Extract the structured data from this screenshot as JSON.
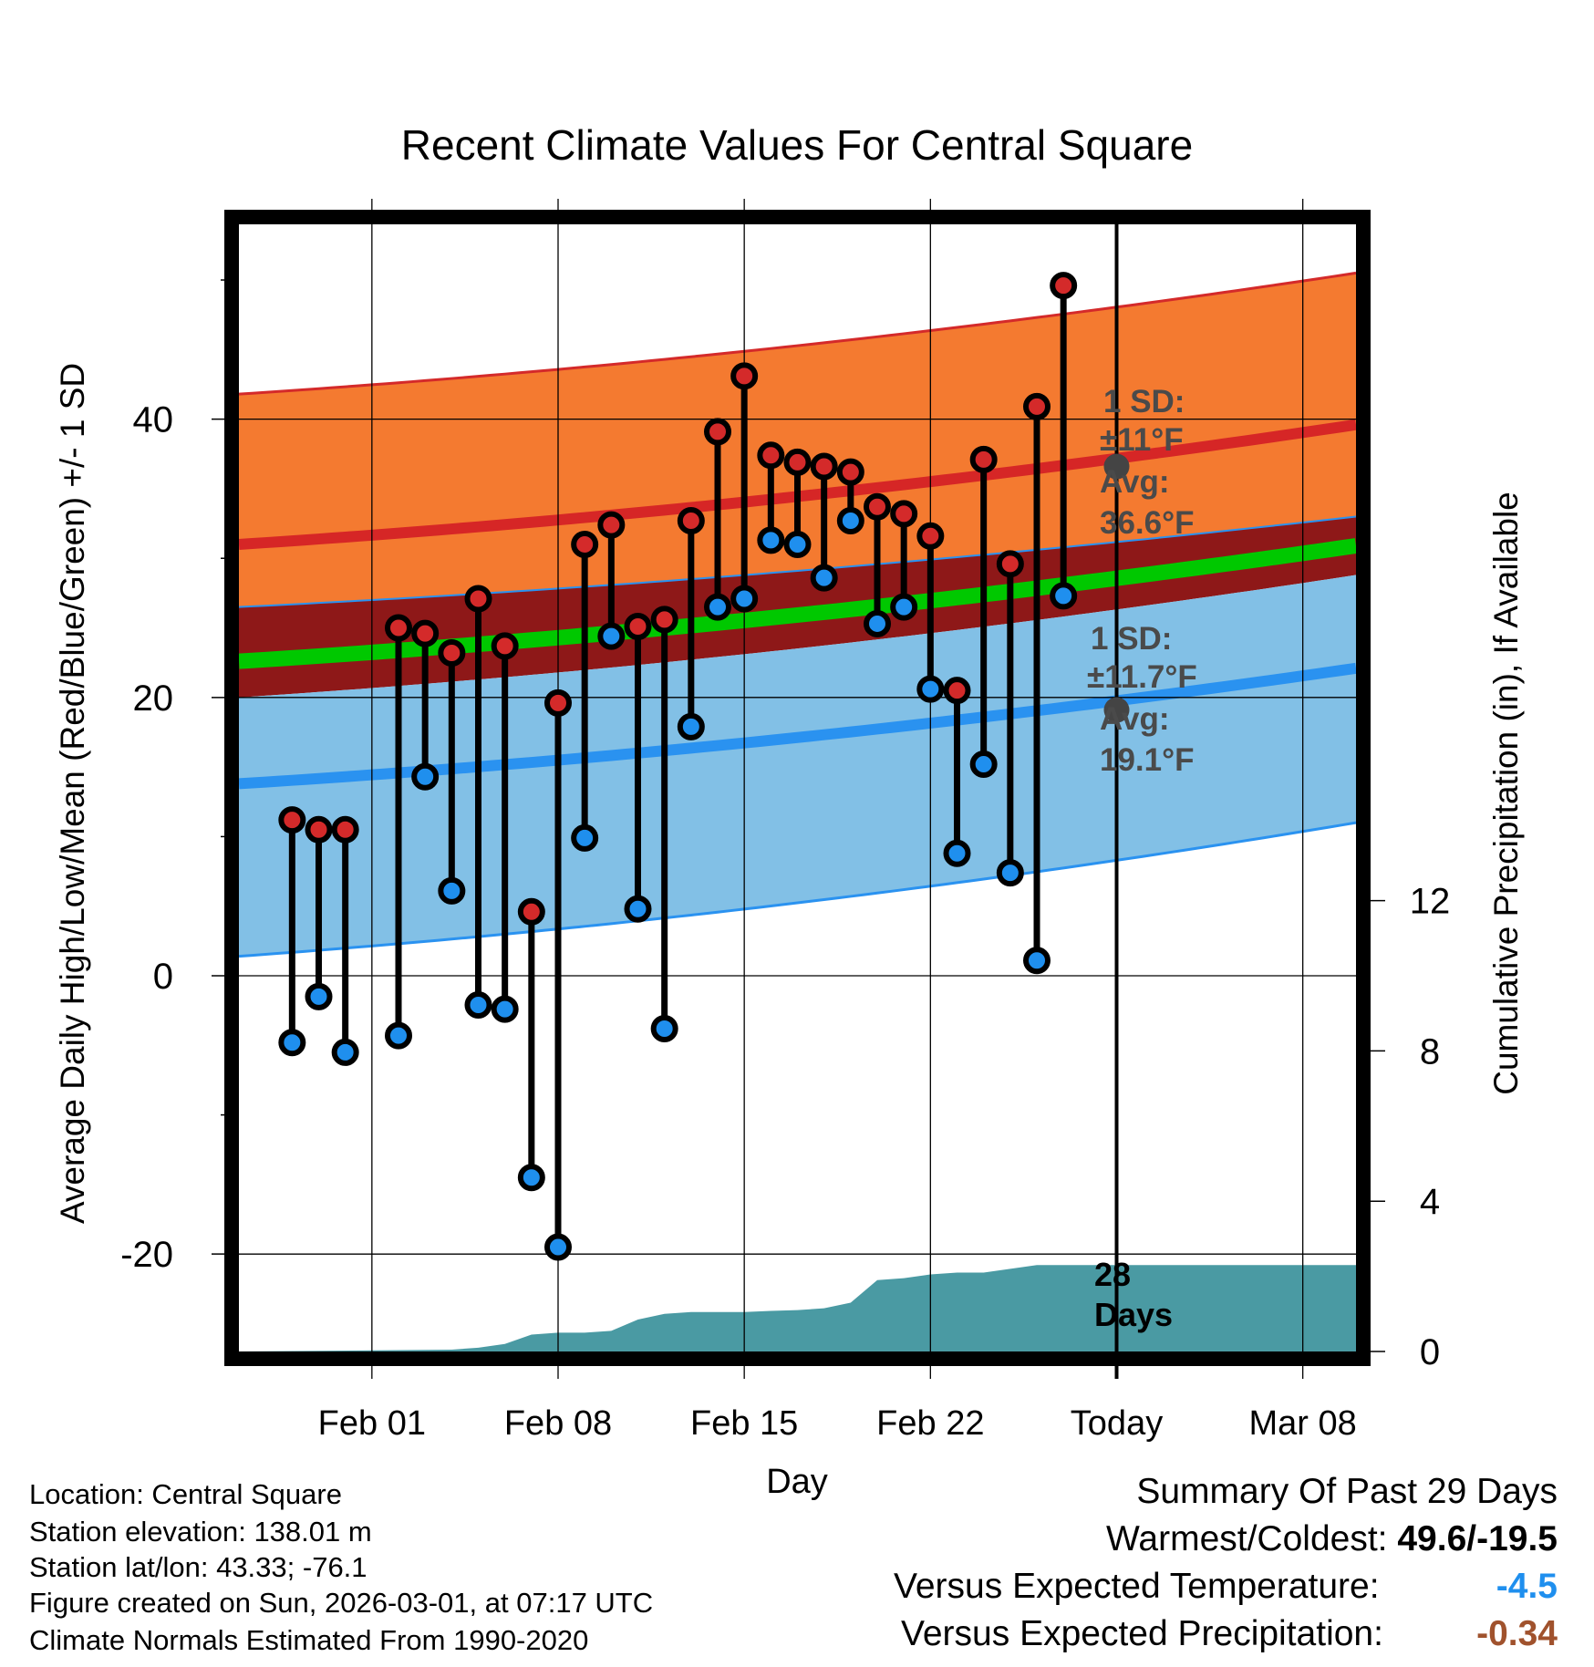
{
  "chart_data": {
    "type": "range-dot",
    "title": "Recent Climate Values For Central Square",
    "xlabel": "Day",
    "ylabel": "Average Daily High/Low/Mean (Red/Blue/Green) +/- 1 SD",
    "ylabel_right": "Cumulative Precipitation (in), If Available",
    "x_range": [
      -2,
      40
    ],
    "ylim": [
      -27,
      54
    ],
    "y2lim": [
      0,
      30
    ],
    "x_ticks": [
      {
        "day": 3,
        "label": "Feb 01"
      },
      {
        "day": 10,
        "label": "Feb 08"
      },
      {
        "day": 17,
        "label": "Feb 15"
      },
      {
        "day": 24,
        "label": "Feb 22"
      },
      {
        "day": 31,
        "label": "Today"
      },
      {
        "day": 38,
        "label": "Mar 08"
      }
    ],
    "y_ticks": [
      40,
      20,
      0,
      -20
    ],
    "y_minor_ticks": [
      50,
      30,
      10,
      -10
    ],
    "y2_ticks": [
      12,
      8,
      4,
      0
    ],
    "today_day": 31,
    "highs": [
      11.2,
      10.5,
      10.5,
      null,
      25.0,
      24.6,
      23.2,
      27.1,
      23.7,
      4.6,
      19.6,
      31.0,
      32.4,
      25.1,
      25.6,
      32.7,
      39.1,
      43.1,
      37.4,
      36.9,
      36.6,
      36.2,
      33.7,
      33.2,
      31.6,
      20.5,
      37.1,
      29.6,
      40.9,
      49.6
    ],
    "lows": [
      -4.8,
      -1.5,
      -5.5,
      null,
      -4.3,
      14.3,
      6.1,
      -2.1,
      -2.4,
      -14.5,
      -19.5,
      9.9,
      24.4,
      4.8,
      -3.8,
      17.9,
      26.5,
      27.1,
      31.3,
      31.0,
      28.6,
      32.7,
      25.3,
      26.5,
      20.6,
      8.8,
      15.2,
      7.4,
      1.1,
      27.3
    ],
    "normal_high": {
      "start": 31.0,
      "end": 39.6
    },
    "normal_low": {
      "start": 13.8,
      "end": 22.1
    },
    "normal_mean": {
      "start": 22.6,
      "end": 30.9
    },
    "high_band": {
      "upper_start": 41.8,
      "upper_end": 50.5,
      "lower_start": 26.5,
      "lower_end": 33.0
    },
    "low_band": {
      "upper_start": 20.0,
      "upper_end": 28.8,
      "lower_start": 1.4,
      "lower_end": 11.0
    },
    "precip_cumulative": [
      [
        -2,
        0
      ],
      [
        6,
        0.05
      ],
      [
        7,
        0.1
      ],
      [
        8,
        0.2
      ],
      [
        9,
        0.45
      ],
      [
        10,
        0.5
      ],
      [
        11,
        0.5
      ],
      [
        12,
        0.55
      ],
      [
        13,
        0.85
      ],
      [
        14,
        1.0
      ],
      [
        15,
        1.05
      ],
      [
        16,
        1.05
      ],
      [
        17,
        1.05
      ],
      [
        18,
        1.08
      ],
      [
        19,
        1.1
      ],
      [
        20,
        1.15
      ],
      [
        21,
        1.3
      ],
      [
        22,
        1.9
      ],
      [
        23,
        1.95
      ],
      [
        24,
        2.05
      ],
      [
        25,
        2.1
      ],
      [
        26,
        2.1
      ],
      [
        27,
        2.2
      ],
      [
        28,
        2.3
      ],
      [
        40,
        2.3
      ]
    ],
    "annotations": {
      "high_sd_label": "1 SD:",
      "high_sd_value": "±11°F",
      "high_avg_label": "Avg:",
      "high_avg_value": "36.6°F",
      "high_avg": 36.6,
      "low_sd_label": "1 SD:",
      "low_sd_value": "±11.7°F",
      "low_avg_label": "Avg:",
      "low_avg_value": "19.1°F",
      "low_avg": 19.1,
      "days_count": "28",
      "days_word": "Days"
    },
    "colors": {
      "high_band": "#f47a30",
      "low_band": "#82c0e6",
      "mean_band": "#8e1818",
      "normal_high_line": "#d62626",
      "normal_low_line": "#2a92f0",
      "normal_mean_line": "#00c800",
      "high_dot": "#d42a2a",
      "low_dot": "#1f8fee",
      "precip_fill": "#4a9aa3",
      "annotation_text": "#4a4a4a"
    }
  },
  "footer": {
    "location": "Location: Central Square",
    "elevation": "Station elevation: 138.01 m",
    "latlon": "Station lat/lon: 43.33; -76.1",
    "created": "Figure created on Sun, 2026-03-01, at 07:17 UTC",
    "normals": "Climate Normals Estimated From 1990-2020"
  },
  "summary": {
    "title": "Summary Of Past 29 Days",
    "warmest_label": "Warmest/Coldest:",
    "warmest_value": "49.6/-19.5",
    "temp_label": "Versus Expected Temperature:",
    "temp_value": "-4.5",
    "temp_color": "#1f8fee",
    "precip_label": "Versus Expected Precipitation:",
    "precip_value": "-0.34",
    "precip_color": "#a0522d"
  }
}
